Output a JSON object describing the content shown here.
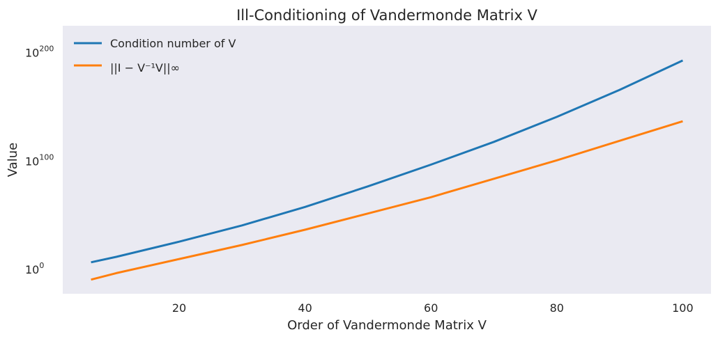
{
  "chart_data": {
    "type": "line",
    "title": "Ill-Conditioning of Vandermonde Matrix V",
    "xlabel": "Order of Vandermonde Matrix V",
    "ylabel": "Value",
    "yscale": "log",
    "xlim": [
      1.5,
      104.5
    ],
    "ylim_log10": [
      -23,
      224
    ],
    "x_ticks": [
      20,
      40,
      60,
      80,
      100
    ],
    "y_ticks": [
      {
        "base": "10",
        "exp": "0",
        "value_log10": 0
      },
      {
        "base": "10",
        "exp": "100",
        "value_log10": 100
      },
      {
        "base": "10",
        "exp": "200",
        "value_log10": 200
      }
    ],
    "grid": false,
    "legend_position": "top-left",
    "background_color": "#eaeaf2",
    "x": [
      6,
      10,
      20,
      30,
      40,
      50,
      60,
      70,
      80,
      90,
      100
    ],
    "series": [
      {
        "name": "Condition number of V",
        "color": "#1f77b4",
        "values_log10": [
          6,
          11,
          25,
          40,
          57,
          76,
          96,
          117,
          140,
          165,
          192
        ]
      },
      {
        "name": "||I − V⁻¹V||∞",
        "color": "#ff7f0e",
        "values_log10": [
          -10,
          -4,
          9,
          22,
          36,
          51,
          66,
          83,
          100,
          118,
          136
        ]
      }
    ]
  }
}
